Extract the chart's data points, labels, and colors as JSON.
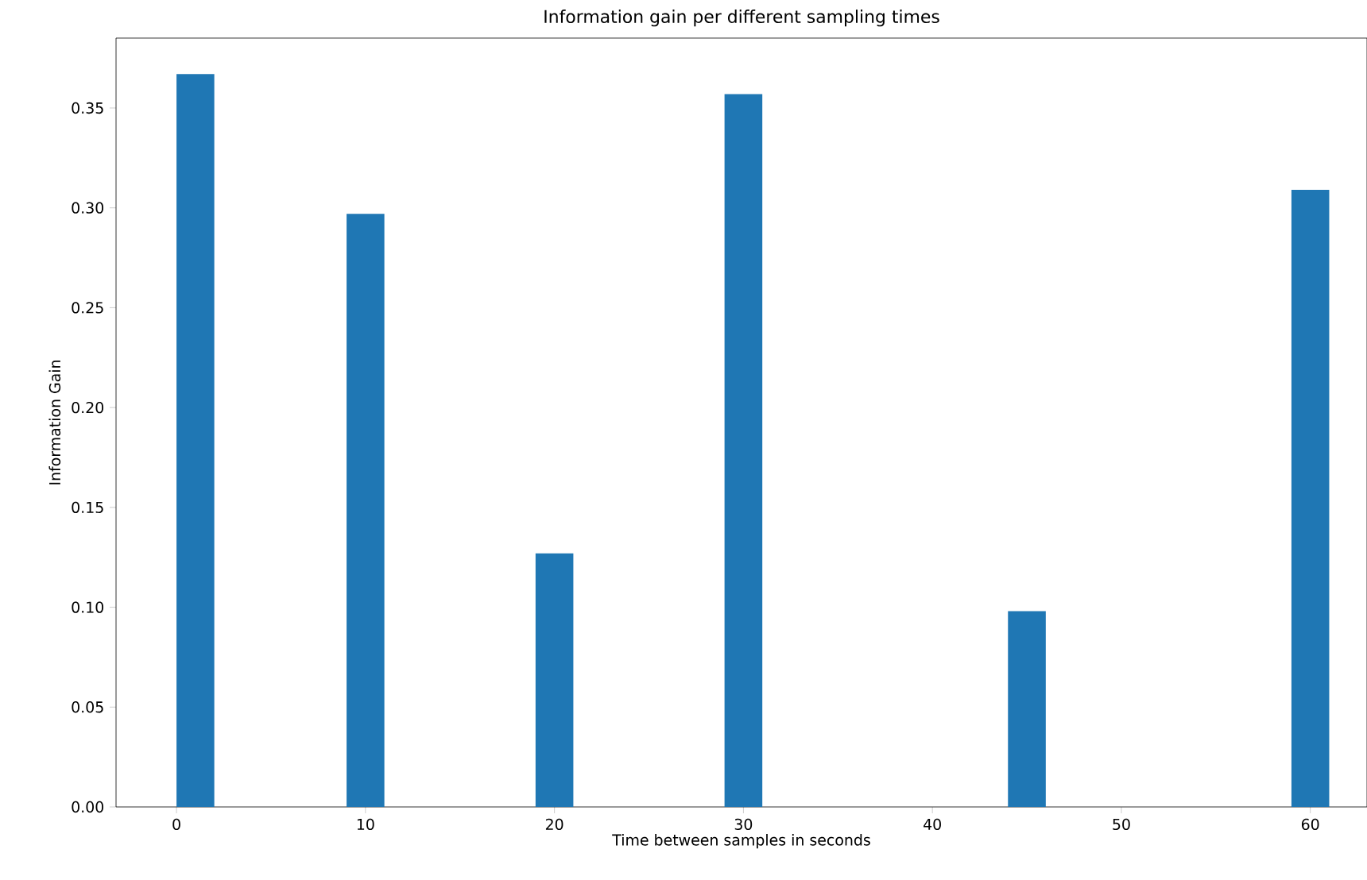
{
  "chart_data": {
    "type": "bar",
    "title": "Information gain per different sampling times",
    "xlabel": "Time between samples in seconds",
    "ylabel": "Information Gain",
    "x": [
      1,
      10,
      20,
      30,
      45,
      60
    ],
    "values": [
      0.367,
      0.297,
      0.127,
      0.357,
      0.098,
      0.309
    ],
    "color": "#1f77b4",
    "xlim": [
      -3.2,
      63
    ],
    "xticks": [
      0,
      10,
      20,
      30,
      40,
      50,
      60
    ],
    "ylim": [
      0,
      0.385
    ],
    "yticks": [
      {
        "value": 0,
        "label": "0.00"
      },
      0.05,
      {
        "value": 0.1,
        "label": "0.10"
      },
      0.15,
      {
        "value": 0.2,
        "label": "0.20"
      },
      0.25,
      {
        "value": 0.3,
        "label": "0.30"
      },
      0.35
    ]
  }
}
